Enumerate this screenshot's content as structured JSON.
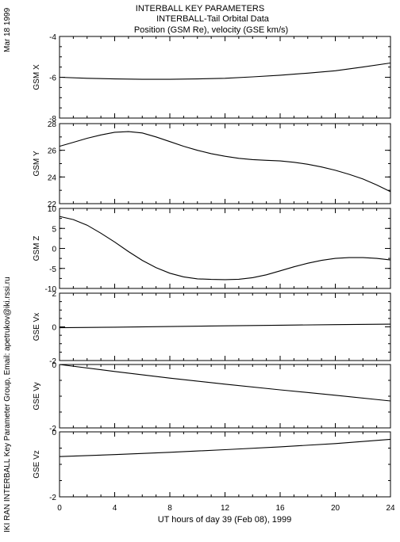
{
  "header": {
    "line1": "INTERBALL KEY PARAMETERS",
    "line2": "INTERBALL-Tail Orbital Data",
    "line3": "Position (GSM Re), velocity (GSE km/s)"
  },
  "side_labels": {
    "date": "Mar 18 1999",
    "credit": "IKI RAN INTERBALL Key Parameter Group, Email: apetrukov@iki.rssi.ru"
  },
  "xaxis": {
    "label": "UT hours of day  39 (Feb 08), 1999",
    "range": [
      0,
      24
    ],
    "ticks": [
      0,
      4,
      8,
      12,
      16,
      20,
      24
    ]
  },
  "chart_data": [
    {
      "type": "line",
      "ylabel": "GSM X",
      "ylim": [
        -8,
        -4
      ],
      "yticks": [
        -4,
        -6,
        -8
      ],
      "x": [
        0,
        2,
        4,
        6,
        8,
        10,
        12,
        14,
        16,
        18,
        20,
        22,
        24
      ],
      "values": [
        -6.0,
        -6.05,
        -6.08,
        -6.1,
        -6.1,
        -6.08,
        -6.05,
        -5.98,
        -5.9,
        -5.8,
        -5.68,
        -5.5,
        -5.3
      ]
    },
    {
      "type": "line",
      "ylabel": "GSM Y",
      "ylim": [
        22,
        28
      ],
      "yticks": [
        28,
        26,
        24,
        22
      ],
      "x": [
        0,
        1,
        2,
        3,
        4,
        5,
        6,
        7,
        8,
        9,
        10,
        11,
        12,
        13,
        14,
        15,
        16,
        17,
        18,
        19,
        20,
        21,
        22,
        23,
        24
      ],
      "values": [
        26.3,
        26.6,
        26.9,
        27.15,
        27.35,
        27.4,
        27.3,
        27.0,
        26.65,
        26.3,
        26.0,
        25.75,
        25.55,
        25.4,
        25.3,
        25.25,
        25.2,
        25.1,
        24.95,
        24.75,
        24.5,
        24.2,
        23.85,
        23.4,
        22.9
      ]
    },
    {
      "type": "line",
      "ylabel": "GSM Z",
      "ylim": [
        -10,
        10
      ],
      "yticks": [
        10,
        5,
        0,
        -5,
        -10
      ],
      "x": [
        0,
        1,
        2,
        3,
        4,
        5,
        6,
        7,
        8,
        9,
        10,
        11,
        12,
        13,
        14,
        15,
        16,
        17,
        18,
        19,
        20,
        21,
        22,
        23,
        24
      ],
      "values": [
        8.0,
        7.2,
        5.8,
        3.8,
        1.6,
        -0.8,
        -3.0,
        -4.8,
        -6.2,
        -7.1,
        -7.6,
        -7.75,
        -7.8,
        -7.7,
        -7.3,
        -6.6,
        -5.6,
        -4.6,
        -3.7,
        -3.0,
        -2.5,
        -2.3,
        -2.3,
        -2.5,
        -2.9
      ]
    },
    {
      "type": "line",
      "ylabel": "GSE Vx",
      "ylim": [
        -2,
        2
      ],
      "yticks": [
        2,
        0,
        -2
      ],
      "x": [
        0,
        4,
        8,
        12,
        16,
        20,
        24
      ],
      "values": [
        -0.05,
        -0.02,
        0.02,
        0.06,
        0.1,
        0.13,
        0.16
      ]
    },
    {
      "type": "line",
      "ylabel": "GSE Vy",
      "ylim": [
        -2,
        0
      ],
      "yticks": [
        0,
        -2
      ],
      "x": [
        0,
        4,
        8,
        12,
        16,
        20,
        24
      ],
      "values": [
        0.0,
        -0.22,
        -0.43,
        -0.62,
        -0.8,
        -0.97,
        -1.15
      ]
    },
    {
      "type": "line",
      "ylabel": "GSE Vz",
      "ylim": [
        -2,
        0
      ],
      "yticks": [
        0,
        -2
      ],
      "x": [
        0,
        4,
        8,
        12,
        16,
        20,
        24
      ],
      "values": [
        -0.76,
        -0.7,
        -0.63,
        -0.55,
        -0.46,
        -0.36,
        -0.23
      ]
    }
  ]
}
